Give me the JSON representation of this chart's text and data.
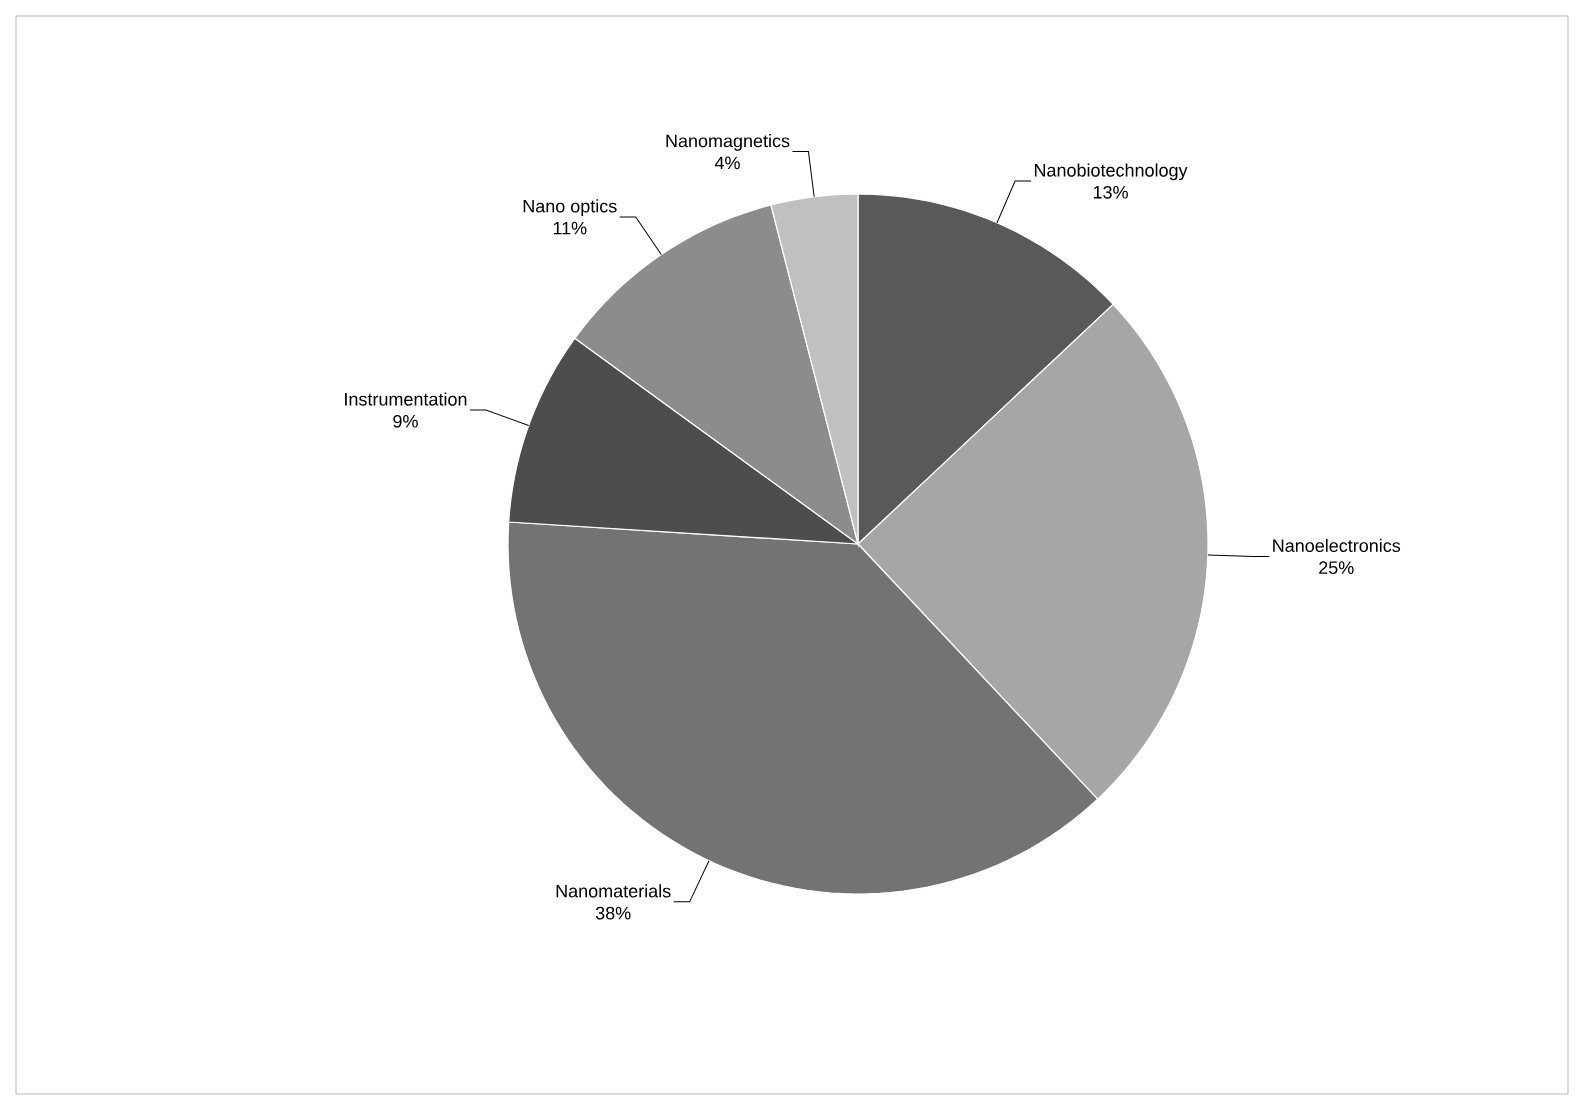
{
  "chart_data": {
    "type": "pie",
    "categories": [
      "Nanobiotechnology",
      "Nanoelectronics",
      "Nanomaterials",
      "Instrumentation",
      "Nano optics",
      "Nanomagnetics"
    ],
    "values": [
      13,
      25,
      38,
      9,
      11,
      4
    ],
    "value_labels": [
      "13%",
      "25%",
      "38%",
      "9%",
      "11%",
      "4%"
    ],
    "colors": [
      "#595959",
      "#a6a6a6",
      "#737373",
      "#4d4d4d",
      "#8c8c8c",
      "#c0c0c0"
    ]
  }
}
